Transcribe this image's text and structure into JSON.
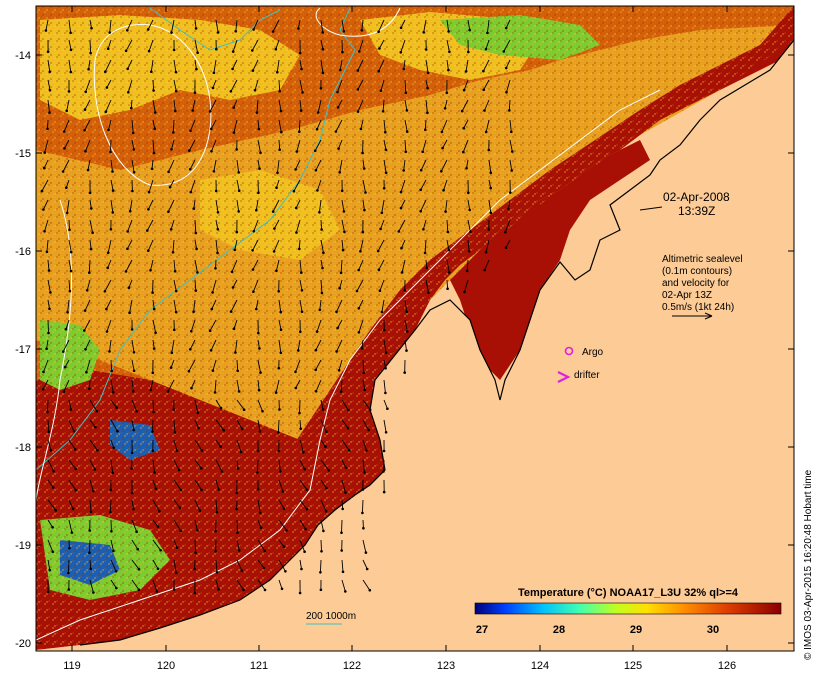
{
  "map": {
    "x_ticks": [
      "119",
      "120",
      "121",
      "122",
      "123",
      "124",
      "125",
      "126"
    ],
    "y_ticks": [
      "-14",
      "-15",
      "-16",
      "-17",
      "-18",
      "-19",
      "-20"
    ],
    "colors": {
      "land": "#fdcb96",
      "sea_hot": "#a80f05",
      "sea_warm": "#d4600a",
      "sea_mid": "#e8a020",
      "sea_cool": "#f0c020",
      "sea_green": "#7ccc30",
      "sea_blue": "#1a5fb4",
      "coast": "#000000",
      "contour": "#ffffff",
      "isobath": "#3fc0c0",
      "argo": "#e020e0",
      "drifter": "#e020e0"
    }
  },
  "annotations": {
    "date": "02-Apr-2008",
    "time": "13:39Z",
    "legend_lines": [
      "Altimetric sealevel",
      "(0.1m contours)",
      "and velocity for",
      "02-Apr 13Z",
      "0.5m/s (1kt 24h)"
    ],
    "argo": "Argo",
    "drifter": "drifter",
    "isobath": "200  1000m"
  },
  "colorbar": {
    "title": "Temperature (°C) NOAA17_L3U 32% ql>=4",
    "ticks": [
      "27",
      "28",
      "29",
      "30"
    ]
  },
  "credit": "© IMOS 03-Apr-2015 16:20:48 Hobart time"
}
